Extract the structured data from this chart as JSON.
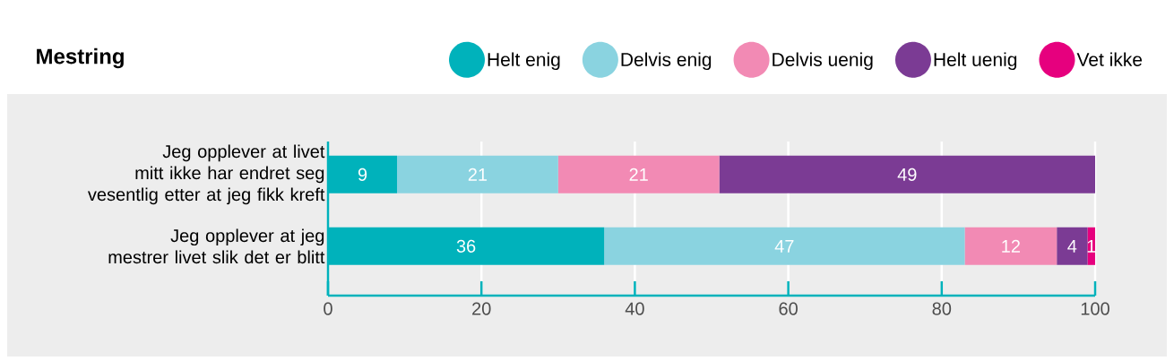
{
  "chart_data": {
    "type": "bar",
    "orientation": "horizontal",
    "stacked": true,
    "title": "Mestring",
    "categories": [
      "Jeg opplever at livet mitt ikke har endret seg vesentlig etter at jeg fikk kreft",
      "Jeg opplever at jeg mestrer livet slik det er blitt"
    ],
    "series": [
      {
        "name": "Helt enig",
        "color": "#00b2bb",
        "values": [
          9,
          36
        ],
        "value_labels": [
          "9",
          "36"
        ]
      },
      {
        "name": "Delvis enig",
        "color": "#8ad3e0",
        "values": [
          21,
          47
        ],
        "value_labels": [
          "21",
          "47"
        ]
      },
      {
        "name": "Delvis uenig",
        "color": "#f28ab4",
        "values": [
          21,
          12
        ],
        "value_labels": [
          "21",
          "12"
        ]
      },
      {
        "name": "Helt uenig",
        "color": "#7b3b94",
        "values": [
          49,
          4
        ],
        "value_labels": [
          "49",
          "4"
        ]
      },
      {
        "name": "Vet ikke",
        "color": "#e6007e",
        "values": [
          0,
          1
        ],
        "value_labels": [
          null,
          "1"
        ]
      }
    ],
    "xlim": [
      0,
      100
    ],
    "xticks": [
      0,
      20,
      40,
      60,
      80,
      100
    ],
    "grid": "x",
    "legend": "top right"
  }
}
